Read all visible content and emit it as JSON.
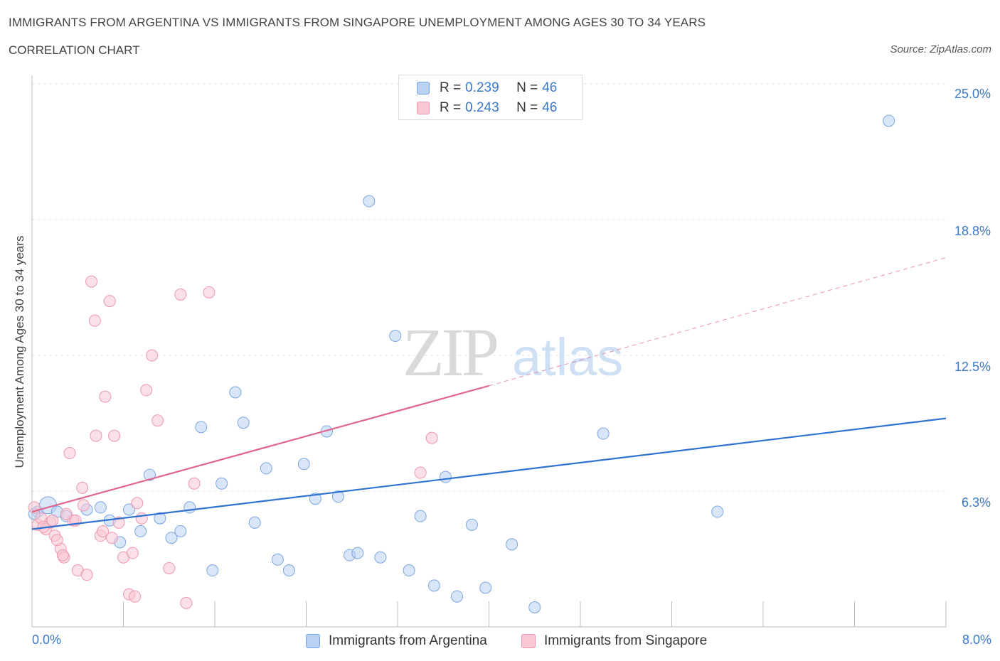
{
  "header": {
    "title": "IMMIGRANTS FROM ARGENTINA VS IMMIGRANTS FROM SINGAPORE UNEMPLOYMENT AMONG AGES 30 TO 34 YEARS",
    "subtitle": "CORRELATION CHART",
    "source": "Source: ZipAtlas.com"
  },
  "watermark": {
    "zip": "ZIP",
    "atlas": "atlas"
  },
  "legend": {
    "argentina": {
      "r_label": "R = ",
      "r_value": "0.239",
      "n_label": "N = ",
      "n_value": "46"
    },
    "singapore": {
      "r_label": "R = ",
      "r_value": "0.243",
      "n_label": "N = ",
      "n_value": "46"
    }
  },
  "bottom_legend": {
    "argentina": "Immigrants from Argentina",
    "singapore": "Immigrants from Singapore"
  },
  "axis": {
    "ylabel": "Unemployment Among Ages 30 to 34 years",
    "x_min_label": "0.0%",
    "x_max_label": "8.0%",
    "y_ticks": [
      "25.0%",
      "18.8%",
      "12.5%",
      "6.3%"
    ]
  },
  "colors": {
    "argentina_fill": "#b9d2f3",
    "argentina_stroke": "#7aa6df",
    "argentina_line": "#2f72d0",
    "singapore_fill": "#f9c6d4",
    "singapore_stroke": "#eb97b0",
    "singapore_line": "#e0648e",
    "grid": "#e3e3e3",
    "tick_text": "#3a78c9"
  },
  "chart_data": {
    "type": "scatter",
    "title": "IMMIGRANTS FROM ARGENTINA VS IMMIGRANTS FROM SINGAPORE UNEMPLOYMENT AMONG AGES 30 TO 34 YEARS",
    "xlabel": "",
    "ylabel": "Unemployment Among Ages 30 to 34 years",
    "xlim": [
      0,
      8.0
    ],
    "ylim": [
      0,
      25.0
    ],
    "y_gridlines": [
      6.25,
      12.5,
      18.75,
      25.0
    ],
    "series": [
      {
        "name": "Immigrants from Argentina",
        "color": "#b9d2f3",
        "points": [
          [
            0.05,
            5.3
          ],
          [
            0.14,
            5.6
          ],
          [
            0.22,
            5.3
          ],
          [
            0.3,
            5.1
          ],
          [
            0.48,
            5.4
          ],
          [
            0.6,
            5.5
          ],
          [
            0.68,
            4.9
          ],
          [
            0.77,
            3.9
          ],
          [
            0.85,
            5.4
          ],
          [
            0.95,
            4.4
          ],
          [
            1.03,
            7.0
          ],
          [
            1.12,
            5.0
          ],
          [
            1.22,
            4.1
          ],
          [
            1.3,
            4.4
          ],
          [
            1.38,
            5.5
          ],
          [
            1.48,
            9.2
          ],
          [
            1.58,
            2.6
          ],
          [
            1.66,
            6.6
          ],
          [
            1.78,
            10.8
          ],
          [
            1.85,
            9.4
          ],
          [
            1.95,
            4.8
          ],
          [
            2.05,
            7.3
          ],
          [
            2.15,
            3.1
          ],
          [
            2.25,
            2.6
          ],
          [
            2.38,
            7.5
          ],
          [
            2.48,
            5.9
          ],
          [
            2.58,
            9.0
          ],
          [
            2.68,
            6.0
          ],
          [
            2.78,
            3.3
          ],
          [
            2.85,
            3.4
          ],
          [
            2.95,
            19.6
          ],
          [
            3.05,
            3.2
          ],
          [
            3.18,
            13.4
          ],
          [
            3.3,
            2.6
          ],
          [
            3.4,
            5.1
          ],
          [
            3.52,
            1.9
          ],
          [
            3.62,
            6.9
          ],
          [
            3.72,
            1.4
          ],
          [
            3.85,
            4.7
          ],
          [
            3.97,
            1.8
          ],
          [
            4.2,
            3.8
          ],
          [
            4.4,
            0.9
          ],
          [
            5.0,
            8.9
          ],
          [
            6.0,
            5.3
          ],
          [
            7.5,
            23.3
          ],
          [
            0.02,
            5.2
          ]
        ],
        "trend": {
          "x0": 0.0,
          "y0": 4.5,
          "x1": 8.0,
          "y1": 9.6
        }
      },
      {
        "name": "Immigrants from Singapore",
        "color": "#f9c6d4",
        "points": [
          [
            0.02,
            5.5
          ],
          [
            0.05,
            4.7
          ],
          [
            0.08,
            5.0
          ],
          [
            0.12,
            4.5
          ],
          [
            0.16,
            4.8
          ],
          [
            0.2,
            4.2
          ],
          [
            0.25,
            3.6
          ],
          [
            0.28,
            3.2
          ],
          [
            0.33,
            8.0
          ],
          [
            0.36,
            4.9
          ],
          [
            0.4,
            2.6
          ],
          [
            0.44,
            6.4
          ],
          [
            0.48,
            2.4
          ],
          [
            0.52,
            15.9
          ],
          [
            0.56,
            8.8
          ],
          [
            0.6,
            4.2
          ],
          [
            0.64,
            10.6
          ],
          [
            0.68,
            15.0
          ],
          [
            0.72,
            8.8
          ],
          [
            0.76,
            4.8
          ],
          [
            0.8,
            3.2
          ],
          [
            0.85,
            1.5
          ],
          [
            0.88,
            3.4
          ],
          [
            0.92,
            5.7
          ],
          [
            0.96,
            5.0
          ],
          [
            1.0,
            10.9
          ],
          [
            1.05,
            12.5
          ],
          [
            1.1,
            9.5
          ],
          [
            1.2,
            2.7
          ],
          [
            1.3,
            15.3
          ],
          [
            1.35,
            1.1
          ],
          [
            1.42,
            6.6
          ],
          [
            1.55,
            15.4
          ],
          [
            0.55,
            14.1
          ],
          [
            0.3,
            5.2
          ],
          [
            0.18,
            4.9
          ],
          [
            0.1,
            4.6
          ],
          [
            0.22,
            4.0
          ],
          [
            0.38,
            4.9
          ],
          [
            0.45,
            5.6
          ],
          [
            0.62,
            4.4
          ],
          [
            0.7,
            4.1
          ],
          [
            0.9,
            1.4
          ],
          [
            3.4,
            7.1
          ],
          [
            3.5,
            8.7
          ],
          [
            0.27,
            3.3
          ]
        ],
        "trend": {
          "x0": 0.0,
          "y0": 5.3,
          "x1": 4.0,
          "y1": 11.1,
          "dashed_to_x": 8.0,
          "dashed_to_y": 17.0
        }
      }
    ]
  }
}
